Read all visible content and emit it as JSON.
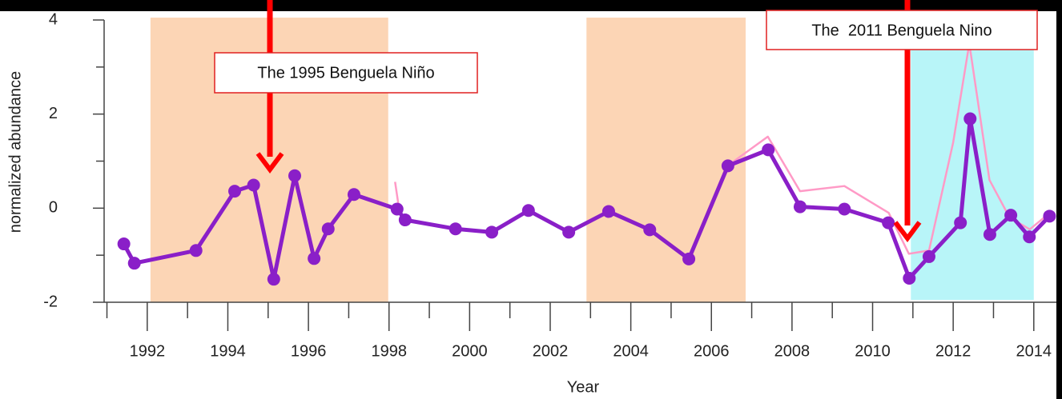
{
  "chart_data": {
    "type": "line",
    "x_label": "Year",
    "y_label": "normalized abundance",
    "xlim": [
      1990.93,
      2014.7
    ],
    "ylim": [
      -2,
      4
    ],
    "xticks": [
      1992,
      1994,
      1996,
      1998,
      2000,
      2002,
      2004,
      2006,
      2008,
      2010,
      2012,
      2014
    ],
    "xminorticks": [
      1991,
      1993,
      1995,
      1997,
      1999,
      2001,
      2003,
      2005,
      2007,
      2009,
      2011,
      2013
    ],
    "yticks": [
      -2,
      0,
      2,
      4
    ],
    "yminorticks": [
      -1,
      1,
      3
    ],
    "shaded_regions": [
      {
        "x": [
          1992.08,
          1997.98
        ],
        "y": [
          -2,
          4.05
        ],
        "color": "#fcd5b5"
      },
      {
        "x": [
          2002.9,
          2006.85
        ],
        "y": [
          -2,
          4.05
        ],
        "color": "#fcd5b5"
      },
      {
        "x": [
          2010.95,
          2014.0
        ],
        "y": [
          -1.95,
          3.6
        ],
        "color": "#b8f5f8"
      }
    ],
    "annotations": [
      "The 1995 Benguela Niño",
      "The  2011 Benguela Nino"
    ],
    "series": [
      {
        "color": "#ff9ac6",
        "markers": false,
        "x": [
          1998.15,
          1998.25,
          2002.0,
          2006.4,
          2007.4,
          2008.2,
          2009.3,
          2010.4,
          2010.9,
          2011.4,
          2012.0,
          2012.4,
          2012.9,
          2013.4,
          2013.9,
          2014.4
        ],
        "values": [
          0.56,
          -0.02,
          null,
          0.9,
          1.52,
          0.36,
          0.47,
          -0.1,
          -0.97,
          -0.9,
          1.4,
          3.5,
          0.6,
          -0.2,
          -0.45,
          -0.1
        ]
      },
      {
        "color": "#8a1fc8",
        "markers": true,
        "x": [
          1991.42,
          1991.68,
          1993.21,
          1994.17,
          1994.64,
          1995.14,
          1995.66,
          1996.14,
          1996.49,
          1997.13,
          1998.2,
          1998.4,
          1999.65,
          2000.55,
          2001.46,
          2002.46,
          2003.45,
          2004.47,
          2005.44,
          2006.41,
          2007.41,
          2008.2,
          2009.3,
          2010.39,
          2010.91,
          2011.4,
          2012.18,
          2012.42,
          2012.91,
          2013.43,
          2013.89,
          2014.39
        ],
        "values": [
          -0.76,
          -1.17,
          -0.9,
          0.36,
          0.49,
          -1.51,
          0.69,
          -1.07,
          -0.44,
          0.29,
          -0.02,
          -0.25,
          -0.44,
          -0.51,
          -0.05,
          -0.51,
          -0.07,
          -0.46,
          -1.08,
          0.9,
          1.24,
          0.03,
          -0.02,
          -0.31,
          -1.49,
          -1.03,
          -0.31,
          1.9,
          -0.56,
          -0.15,
          -0.61,
          -0.17
        ]
      }
    ]
  }
}
